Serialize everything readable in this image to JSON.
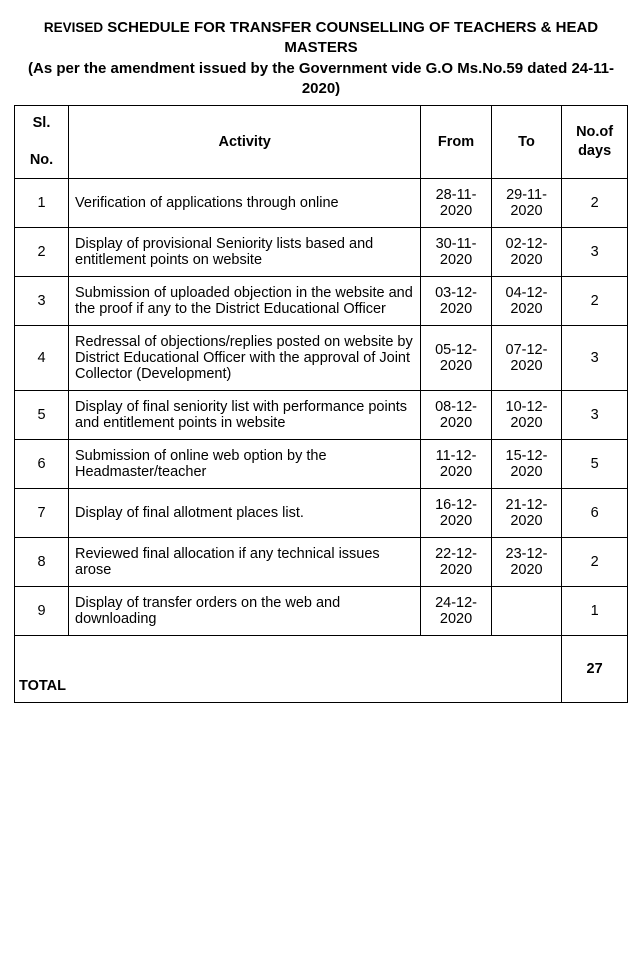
{
  "title_prefix": "REVISED",
  "title_main": "SCHEDULE FOR TRANSFER COUNSELLING OF TEACHERS & HEAD MASTERS",
  "title_sub": "(As per the amendment issued by the Government vide G.O Ms.No.59 dated 24-11-2020)",
  "headers": {
    "sl_line1": "Sl.",
    "sl_line2": "No.",
    "activity": "Activity",
    "from": "From",
    "to": "To",
    "days_line1": "No.of",
    "days_line2": "days"
  },
  "rows": [
    {
      "sl": "1",
      "activity": "Verification of applications through online",
      "from": "28-11-2020",
      "to": "29-11-2020",
      "days": "2"
    },
    {
      "sl": "2",
      "activity": "Display of provisional Seniority lists based and entitlement points on website",
      "from": "30-11-2020",
      "to": "02-12-2020",
      "days": "3"
    },
    {
      "sl": "3",
      "activity": "Submission of uploaded objection in the website and the proof if any to the District Educational Officer",
      "from": "03-12-2020",
      "to": "04-12-2020",
      "days": "2"
    },
    {
      "sl": "4",
      "activity": "Redressal of objections/replies posted on website by District Educational Officer with the approval of Joint Collector (Development)",
      "from": "05-12-2020",
      "to": "07-12-2020",
      "days": "3"
    },
    {
      "sl": "5",
      "activity": "Display of final seniority list with performance points and entitlement points in website",
      "from": "08-12-2020",
      "to": "10-12-2020",
      "days": "3"
    },
    {
      "sl": "6",
      "activity": "Submission of online web option by the Headmaster/teacher",
      "from": "11-12-2020",
      "to": "15-12-2020",
      "days": "5"
    },
    {
      "sl": "7",
      "activity": "Display of final allotment places list.",
      "from": "16-12-2020",
      "to": "21-12-2020",
      "days": "6"
    },
    {
      "sl": "8",
      "activity": "Reviewed final allocation if any technical issues arose",
      "from": "22-12-2020",
      "to": "23-12-2020",
      "days": "2"
    },
    {
      "sl": "9",
      "activity": "Display of transfer orders on the web and downloading",
      "from": "24-12-2020",
      "to": "",
      "days": "1"
    }
  ],
  "total_label": "TOTAL",
  "total_days": "27"
}
